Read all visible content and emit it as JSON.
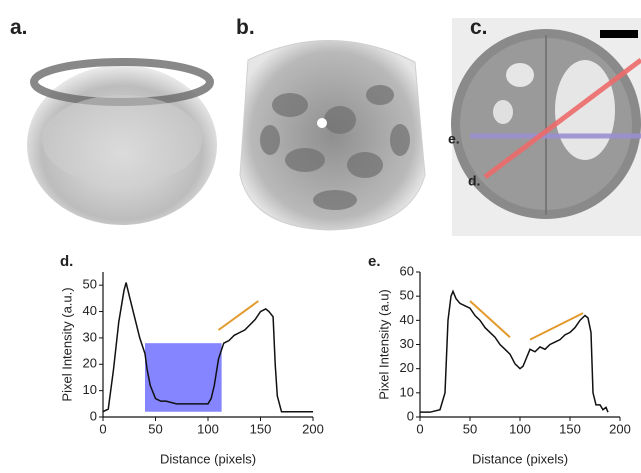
{
  "images": [
    {
      "label": "a."
    },
    {
      "label": "b."
    },
    {
      "label": "c.",
      "line_labels": [
        "e.",
        "d."
      ]
    }
  ],
  "chart_data": [
    {
      "type": "line",
      "title": "d.",
      "xlabel": "Distance (pixels)",
      "ylabel": "Pixel Intensity (a.u.)",
      "x": [
        0,
        5,
        10,
        15,
        20,
        22,
        25,
        30,
        35,
        40,
        42,
        45,
        50,
        55,
        60,
        70,
        80,
        90,
        100,
        103,
        106,
        110,
        115,
        120,
        125,
        130,
        135,
        140,
        145,
        150,
        155,
        158,
        162,
        164,
        166,
        170,
        180,
        190,
        200
      ],
      "values": [
        2,
        3,
        18,
        36,
        48,
        51,
        46,
        38,
        30,
        24,
        18,
        12,
        7,
        6,
        6,
        5,
        5,
        5,
        5,
        7,
        12,
        22,
        28,
        29,
        31,
        32,
        33,
        35,
        37,
        40,
        41,
        40,
        38,
        20,
        8,
        2,
        2,
        2,
        2
      ],
      "color": "#111111",
      "highlight": {
        "x": [
          40,
          113
        ],
        "y": [
          2,
          28
        ],
        "color": "#8585ff"
      },
      "trend_lines": [
        {
          "x": [
            110,
            148
          ],
          "y": [
            33,
            44
          ]
        }
      ],
      "trend_color": "#e39a2d",
      "xlim": [
        0,
        200
      ],
      "ylim": [
        0,
        55
      ],
      "xticks": [
        0,
        50,
        100,
        150,
        200
      ],
      "yticks": [
        0,
        10,
        20,
        30,
        40,
        50
      ]
    },
    {
      "type": "line",
      "title": "e.",
      "xlabel": "Distance (pixels)",
      "ylabel": "Pixel Intensity (a.u)",
      "x": [
        0,
        10,
        20,
        25,
        28,
        31,
        33,
        36,
        40,
        45,
        50,
        55,
        60,
        65,
        70,
        75,
        80,
        85,
        90,
        95,
        100,
        103,
        106,
        110,
        115,
        120,
        125,
        130,
        135,
        140,
        145,
        150,
        155,
        160,
        165,
        168,
        171,
        173,
        176,
        180,
        183,
        186,
        188
      ],
      "values": [
        2,
        2,
        3,
        10,
        40,
        50,
        52,
        49,
        47,
        46,
        45,
        42,
        40,
        37,
        35,
        33,
        30,
        28,
        26,
        22,
        20,
        21,
        24,
        28,
        27,
        29,
        28,
        30,
        31,
        32,
        34,
        35,
        37,
        40,
        42,
        41,
        35,
        10,
        5,
        5,
        3,
        4,
        2
      ],
      "color": "#111111",
      "trend_lines": [
        {
          "x": [
            50,
            90
          ],
          "y": [
            48,
            33
          ]
        },
        {
          "x": [
            110,
            163
          ],
          "y": [
            32,
            43
          ]
        }
      ],
      "trend_color": "#e39a2d",
      "xlim": [
        0,
        200
      ],
      "ylim": [
        0,
        60
      ],
      "xticks": [
        0,
        50,
        100,
        150,
        200
      ],
      "yticks": [
        0,
        10,
        20,
        30,
        40,
        50,
        60
      ]
    }
  ]
}
